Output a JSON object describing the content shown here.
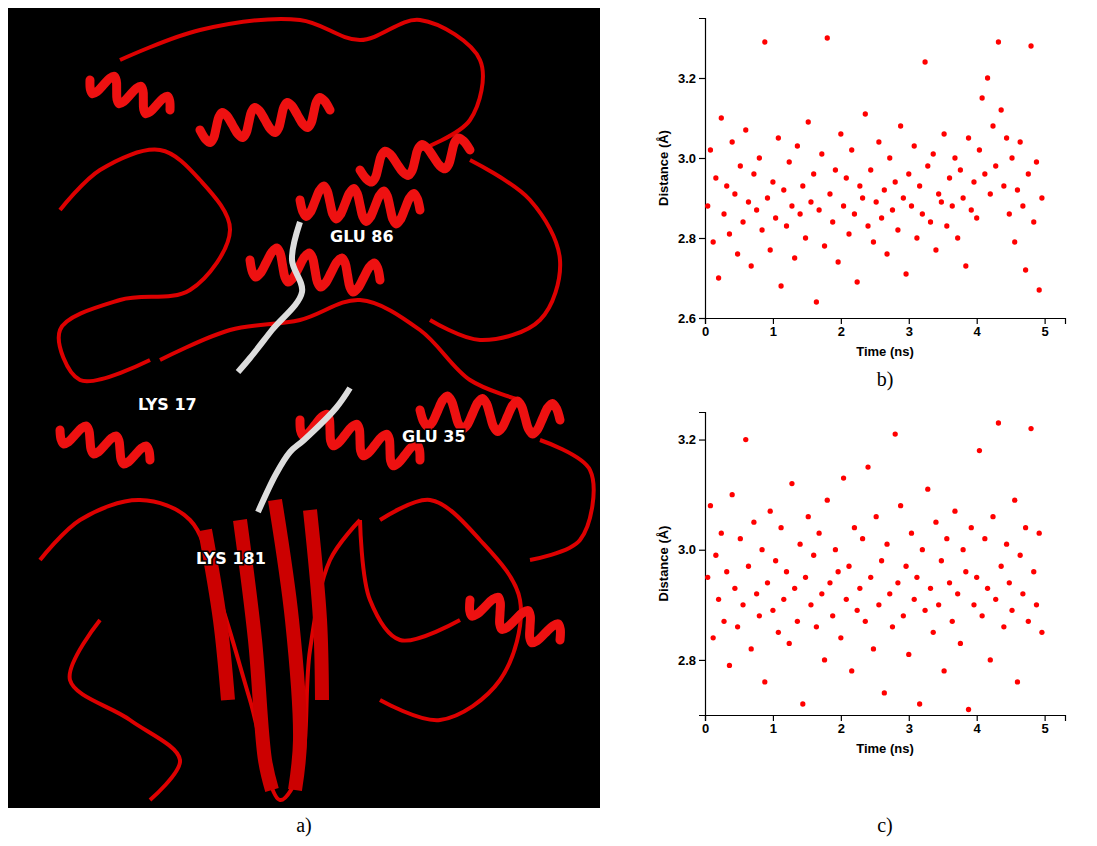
{
  "structure": {
    "panel_label": "a)",
    "residue_labels": [
      "GLU 86",
      "LYS 17",
      "GLU 35",
      "LYS 181"
    ]
  },
  "chart_data": [
    {
      "type": "scatter",
      "panel_label": "b)",
      "x_label": "Time (ns)",
      "y_label": "Distance (Å)",
      "color": "#ff0000",
      "marker": "circle",
      "xlim": [
        0,
        5.3
      ],
      "ylim": [
        2.6,
        3.35
      ],
      "xticks": [
        0,
        1,
        2,
        3,
        4,
        5
      ],
      "yticks": [
        2.6,
        2.8,
        {
          "value": 3,
          "label": "3.0"
        },
        3.2
      ],
      "x": [
        0.04,
        0.08,
        0.12,
        0.16,
        0.2,
        0.24,
        0.28,
        0.32,
        0.36,
        0.4,
        0.44,
        0.48,
        0.52,
        0.56,
        0.6,
        0.64,
        0.68,
        0.72,
        0.76,
        0.8,
        0.84,
        0.88,
        0.92,
        0.96,
        1,
        1.04,
        1.08,
        1.12,
        1.16,
        1.2,
        1.24,
        1.28,
        1.32,
        1.36,
        1.4,
        1.44,
        1.48,
        1.52,
        1.56,
        1.6,
        1.64,
        1.68,
        1.72,
        1.76,
        1.8,
        1.84,
        1.88,
        1.92,
        1.96,
        2,
        2.04,
        2.08,
        2.12,
        2.16,
        2.2,
        2.24,
        2.28,
        2.32,
        2.36,
        2.4,
        2.44,
        2.48,
        2.52,
        2.56,
        2.6,
        2.64,
        2.68,
        2.72,
        2.76,
        2.8,
        2.84,
        2.88,
        2.92,
        2.96,
        3,
        3.04,
        3.08,
        3.12,
        3.16,
        3.2,
        3.24,
        3.28,
        3.32,
        3.36,
        3.4,
        3.44,
        3.48,
        3.52,
        3.56,
        3.6,
        3.64,
        3.68,
        3.72,
        3.76,
        3.8,
        3.84,
        3.88,
        3.92,
        3.96,
        4,
        4.04,
        4.08,
        4.12,
        4.16,
        4.2,
        4.24,
        4.28,
        4.32,
        4.36,
        4.4,
        4.44,
        4.48,
        4.52,
        4.56,
        4.6,
        4.64,
        4.68,
        4.72,
        4.76,
        4.8,
        4.84,
        4.88,
        4.92,
        4.96
      ],
      "values": [
        2.88,
        3.02,
        2.79,
        2.95,
        2.7,
        3.1,
        2.86,
        2.93,
        2.81,
        3.04,
        2.91,
        2.76,
        2.98,
        2.84,
        3.07,
        2.89,
        2.73,
        2.96,
        2.87,
        3.0,
        2.82,
        3.29,
        2.9,
        2.77,
        2.94,
        2.85,
        3.05,
        2.68,
        2.92,
        2.83,
        2.99,
        2.88,
        2.75,
        3.03,
        2.86,
        2.93,
        2.8,
        3.09,
        2.89,
        2.96,
        2.64,
        2.87,
        3.01,
        2.78,
        3.3,
        2.91,
        2.84,
        2.97,
        2.74,
        3.06,
        2.88,
        2.95,
        2.81,
        3.02,
        2.86,
        2.69,
        2.93,
        2.9,
        3.11,
        2.83,
        2.97,
        2.79,
        2.89,
        3.04,
        2.85,
        2.92,
        2.76,
        3.0,
        2.87,
        2.94,
        2.82,
        3.08,
        2.9,
        2.71,
        2.96,
        2.88,
        3.03,
        2.8,
        2.93,
        2.86,
        3.24,
        2.98,
        2.84,
        3.01,
        2.77,
        2.91,
        2.89,
        3.06,
        2.83,
        2.95,
        2.88,
        3.0,
        2.8,
        2.97,
        2.9,
        2.73,
        3.05,
        2.87,
        2.94,
        2.85,
        3.02,
        3.15,
        2.96,
        3.2,
        2.91,
        3.08,
        2.98,
        3.29,
        3.12,
        2.93,
        3.05,
        2.86,
        3.0,
        2.79,
        2.92,
        3.04,
        2.88,
        2.72,
        2.96,
        3.28,
        2.84,
        2.99,
        2.67,
        2.9
      ]
    },
    {
      "type": "scatter",
      "panel_label": "c)",
      "x_label": "Time (ns)",
      "y_label": "Distance (Å)",
      "color": "#ff0000",
      "marker": "circle",
      "xlim": [
        0,
        5.3
      ],
      "ylim": [
        2.7,
        3.25
      ],
      "xticks": [
        0,
        1,
        2,
        3,
        4,
        5
      ],
      "yticks": [
        2.8,
        {
          "value": 3,
          "label": "3.0"
        },
        3.2
      ],
      "x": [
        0.04,
        0.08,
        0.12,
        0.16,
        0.2,
        0.24,
        0.28,
        0.32,
        0.36,
        0.4,
        0.44,
        0.48,
        0.52,
        0.56,
        0.6,
        0.64,
        0.68,
        0.72,
        0.76,
        0.8,
        0.84,
        0.88,
        0.92,
        0.96,
        1,
        1.04,
        1.08,
        1.12,
        1.16,
        1.2,
        1.24,
        1.28,
        1.32,
        1.36,
        1.4,
        1.44,
        1.48,
        1.52,
        1.56,
        1.6,
        1.64,
        1.68,
        1.72,
        1.76,
        1.8,
        1.84,
        1.88,
        1.92,
        1.96,
        2,
        2.04,
        2.08,
        2.12,
        2.16,
        2.2,
        2.24,
        2.28,
        2.32,
        2.36,
        2.4,
        2.44,
        2.48,
        2.52,
        2.56,
        2.6,
        2.64,
        2.68,
        2.72,
        2.76,
        2.8,
        2.84,
        2.88,
        2.92,
        2.96,
        3,
        3.04,
        3.08,
        3.12,
        3.16,
        3.2,
        3.24,
        3.28,
        3.32,
        3.36,
        3.4,
        3.44,
        3.48,
        3.52,
        3.56,
        3.6,
        3.64,
        3.68,
        3.72,
        3.76,
        3.8,
        3.84,
        3.88,
        3.92,
        3.96,
        4,
        4.04,
        4.08,
        4.12,
        4.16,
        4.2,
        4.24,
        4.28,
        4.32,
        4.36,
        4.4,
        4.44,
        4.48,
        4.52,
        4.56,
        4.6,
        4.64,
        4.68,
        4.72,
        4.76,
        4.8,
        4.84,
        4.88,
        4.92,
        4.96
      ],
      "values": [
        2.95,
        3.08,
        2.84,
        2.99,
        2.91,
        3.03,
        2.87,
        2.96,
        2.79,
        3.1,
        2.93,
        2.86,
        3.02,
        2.9,
        3.2,
        2.97,
        2.82,
        3.05,
        2.92,
        2.88,
        3.0,
        2.76,
        2.94,
        3.07,
        2.89,
        2.98,
        2.85,
        3.04,
        2.91,
        2.96,
        2.83,
        3.12,
        2.93,
        2.87,
        3.01,
        2.72,
        2.95,
        3.06,
        2.9,
        2.99,
        2.86,
        3.03,
        2.92,
        2.8,
        3.09,
        2.94,
        2.88,
        3.0,
        2.96,
        2.84,
        3.13,
        2.91,
        2.97,
        2.78,
        3.04,
        2.89,
        2.93,
        3.02,
        2.87,
        3.15,
        2.95,
        2.82,
        3.06,
        2.9,
        2.98,
        2.74,
        3.01,
        2.92,
        2.86,
        3.21,
        2.94,
        3.08,
        2.88,
        2.97,
        2.81,
        3.03,
        2.91,
        2.95,
        2.72,
        3.0,
        2.89,
        3.11,
        2.93,
        2.85,
        3.05,
        2.9,
        2.98,
        2.78,
        3.02,
        2.94,
        2.87,
        3.07,
        2.92,
        2.83,
        3.0,
        2.96,
        2.71,
        3.04,
        2.9,
        2.95,
        3.18,
        2.88,
        3.02,
        2.93,
        2.8,
        3.06,
        2.91,
        3.23,
        2.97,
        2.86,
        3.01,
        2.94,
        2.89,
        3.09,
        2.76,
        2.99,
        2.92,
        3.04,
        2.87,
        3.22,
        2.96,
        2.9,
        3.03,
        2.85
      ]
    }
  ]
}
